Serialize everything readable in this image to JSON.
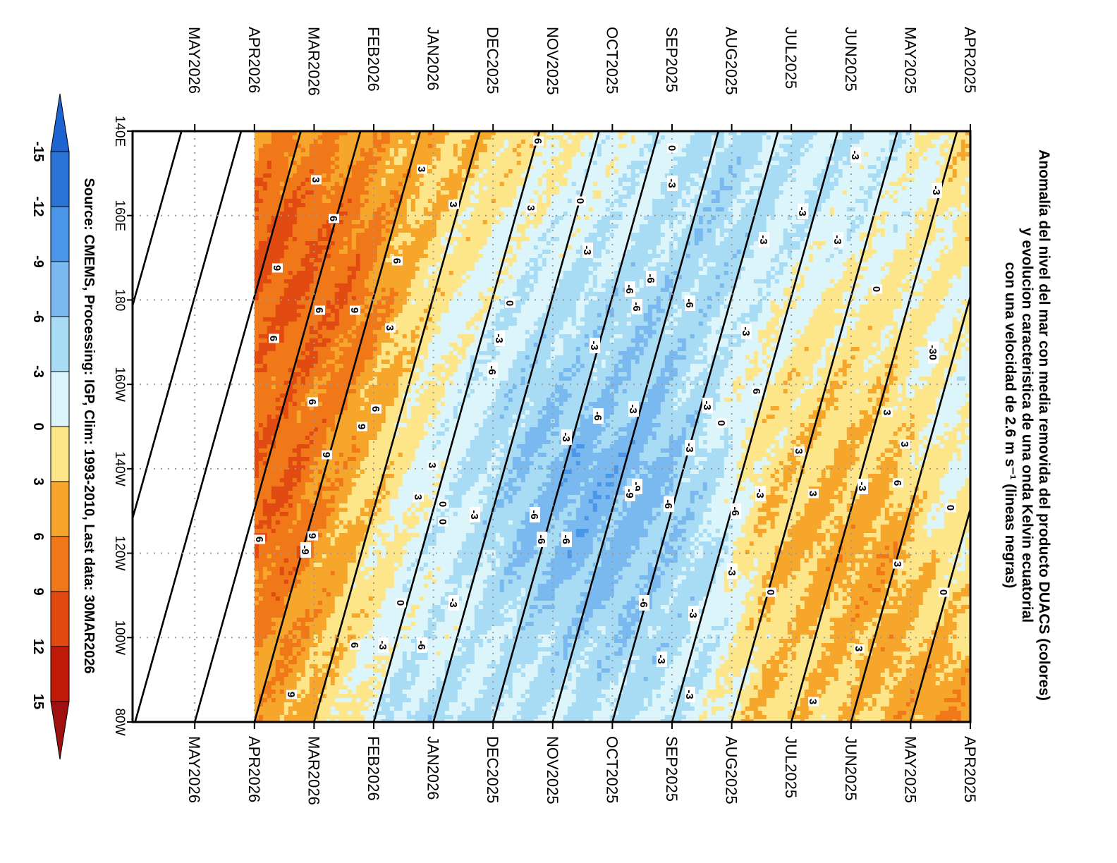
{
  "chart_data": {
    "type": "heatmap",
    "orientation": "rotated-90",
    "title": [
      "Anomalía del nivel del mar con media removida del producto DUACS (colores)",
      "y evolucion caracteristica de una onda Kelvin ecuatorial",
      "con una velocidad de 2.6 m s⁻¹ (lineas negras)"
    ],
    "source": "Source: CMEMS, Processing: IGP, Clim: 1993-2010, Last data: 30MAR2026",
    "time_ticks": [
      "APR2025",
      "MAY2025",
      "JUN2025",
      "JUL2025",
      "AUG2025",
      "SEP2025",
      "OCT2025",
      "NOV2025",
      "DEC2025",
      "JAN2026",
      "FEB2026",
      "MAR2026",
      "APR2026",
      "MAY2026"
    ],
    "lon_ticks": [
      "140E",
      "160E",
      "180",
      "160W",
      "140W",
      "120W",
      "100W",
      "80W"
    ],
    "lon_range_deg_east": [
      140,
      280
    ],
    "last_data": "30MAR2026",
    "colorbar": {
      "labels": [
        "-15",
        "-12",
        "-9",
        "-6",
        "-3",
        "0",
        "3",
        "6",
        "9",
        "12",
        "15"
      ],
      "colors": [
        "#2a74d6",
        "#4a96e8",
        "#7ab8f0",
        "#a8dcf4",
        "#dcf5fa",
        "#fde58a",
        "#f7a62c",
        "#f07818",
        "#e14a10",
        "#c01a08"
      ],
      "extend_colors": {
        "low": "#1e64d0",
        "high": "#a01010"
      }
    },
    "kelvin_wave": {
      "speed_m_s": 2.6,
      "line_spacing_months": 1
    },
    "anomaly_field_cm": [
      {
        "month": "APR2025",
        "values": [
          2,
          1,
          0,
          -1,
          0,
          1,
          3,
          6
        ]
      },
      {
        "month": "MAY2025",
        "values": [
          -2,
          -1,
          1,
          2,
          3,
          5,
          4,
          3
        ]
      },
      {
        "month": "JUN2025",
        "values": [
          -3,
          -2,
          0,
          2,
          3,
          4,
          3,
          2
        ]
      },
      {
        "month": "JUL2025",
        "values": [
          -3,
          -3,
          -1,
          1,
          2,
          3,
          2,
          3
        ]
      },
      {
        "month": "AUG2025",
        "values": [
          -4,
          -5,
          -4,
          -3,
          -4,
          -4,
          -3,
          -2
        ]
      },
      {
        "month": "SEP2025",
        "values": [
          -2,
          -3,
          -5,
          -6,
          -7,
          -6,
          -5,
          -3
        ]
      },
      {
        "month": "OCT2025",
        "values": [
          -1,
          -2,
          -4,
          -5,
          -8,
          -7,
          -5,
          -3
        ]
      },
      {
        "month": "NOV2025",
        "values": [
          1,
          -1,
          -3,
          -5,
          -6,
          -6,
          -4,
          -3
        ]
      },
      {
        "month": "DEC2025",
        "values": [
          3,
          1,
          -1,
          -2,
          -3,
          -3,
          -2,
          -4
        ]
      },
      {
        "month": "JAN2026",
        "values": [
          4,
          3,
          2,
          1,
          0,
          -1,
          -2,
          -4
        ]
      },
      {
        "month": "FEB2026",
        "values": [
          5,
          7,
          8,
          6,
          4,
          3,
          2,
          1
        ]
      },
      {
        "month": "MAR2026",
        "values": [
          6,
          9,
          9,
          8,
          9,
          8,
          6,
          4
        ]
      }
    ],
    "contour_labels": [
      "-3",
      "0",
      "3",
      "6",
      "9",
      "-6",
      "-9"
    ],
    "grid": true
  }
}
